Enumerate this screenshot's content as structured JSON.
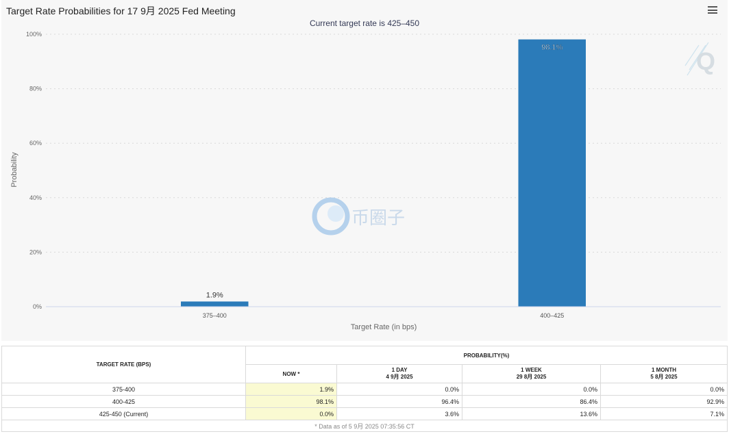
{
  "header": {
    "title": "Target Rate Probabilities for 17 9月 2025 Fed Meeting"
  },
  "watermark": {
    "logo_text": "币圈子"
  },
  "chart_data": {
    "type": "bar",
    "title": "Target Rate Probabilities for 17 9月 2025 Fed Meeting",
    "subtitle": "Current target rate is 425–450",
    "xlabel": "Target Rate (in bps)",
    "ylabel": "Probability",
    "ylim": [
      0,
      100
    ],
    "yticks": [
      0,
      20,
      40,
      60,
      80,
      100
    ],
    "ytick_labels": [
      "0%",
      "20%",
      "40%",
      "60%",
      "80%",
      "100%"
    ],
    "grid": true,
    "categories": [
      "375–400",
      "400–425"
    ],
    "values": [
      1.9,
      98.1
    ],
    "data_labels": [
      "1.9%",
      "98.1%"
    ],
    "bar_color": "#2b7bb9"
  },
  "table": {
    "target_rate_header": "TARGET RATE (BPS)",
    "probability_header": "PROBABILITY(%)",
    "columns": [
      {
        "label": "NOW *",
        "date": ""
      },
      {
        "label": "1 DAY",
        "date": "4 9月 2025"
      },
      {
        "label": "1 WEEK",
        "date": "29 8月 2025"
      },
      {
        "label": "1 MONTH",
        "date": "5 8月 2025"
      }
    ],
    "rows": [
      {
        "rate": "375-400",
        "values": [
          "1.9%",
          "0.0%",
          "0.0%",
          "0.0%"
        ]
      },
      {
        "rate": "400-425",
        "values": [
          "98.1%",
          "96.4%",
          "86.4%",
          "92.9%"
        ]
      },
      {
        "rate": "425-450 (Current)",
        "values": [
          "0.0%",
          "3.6%",
          "13.6%",
          "7.1%"
        ]
      }
    ],
    "footnote": "* Data as of 5 9月 2025 07:35:56 CT"
  }
}
